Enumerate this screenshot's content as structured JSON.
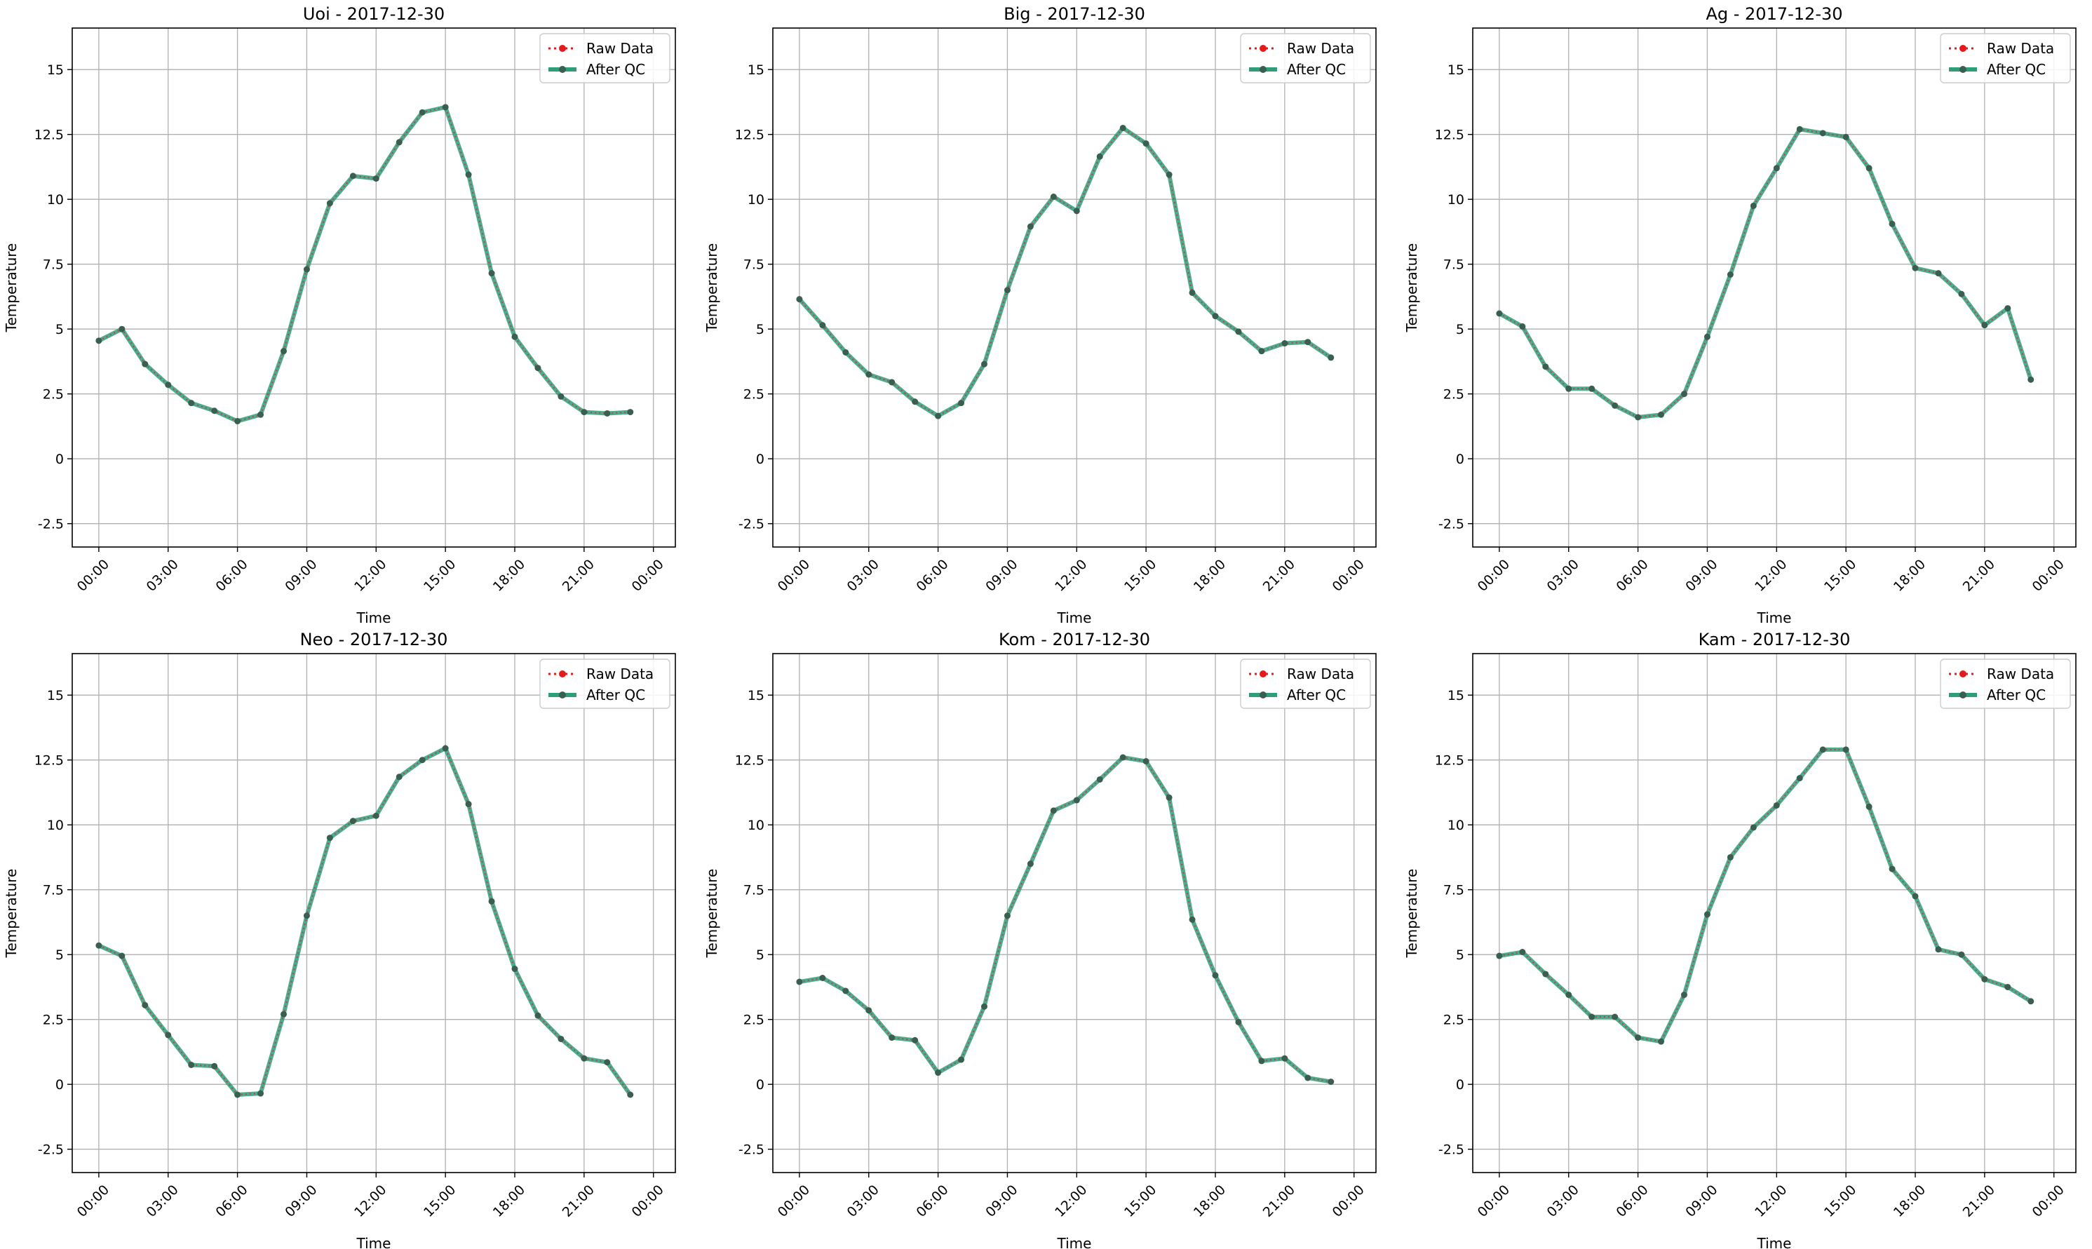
{
  "colors": {
    "raw": "#e41a1c",
    "qc": "#2e9e7a",
    "grid": "#b0b0b0",
    "axis": "#000000",
    "legend_border": "#cccccc"
  },
  "legend": {
    "raw_label": "Raw Data",
    "qc_label": "After QC"
  },
  "chart_data": [
    {
      "type": "line",
      "title": "Uoi - 2017-12-30",
      "xlabel": "Time",
      "ylabel": "Temperature",
      "ylim": [
        -3.4,
        16.6
      ],
      "yticks": [
        -2.5,
        0.0,
        2.5,
        5.0,
        7.5,
        10.0,
        12.5,
        15.0
      ],
      "xticks": [
        "00:00",
        "03:00",
        "06:00",
        "09:00",
        "12:00",
        "15:00",
        "18:00",
        "21:00",
        "00:00"
      ],
      "legend_position": "top-right",
      "grid": true,
      "x_hours": [
        0,
        1,
        2,
        3,
        4,
        5,
        6,
        7,
        8,
        9,
        10,
        11,
        12,
        13,
        14,
        15,
        16,
        17,
        18,
        19,
        20,
        21,
        22,
        23
      ],
      "series": [
        {
          "name": "Raw Data",
          "values": [
            4.55,
            5.0,
            3.65,
            2.85,
            2.15,
            1.85,
            1.45,
            1.7,
            4.15,
            7.3,
            9.85,
            10.9,
            10.8,
            12.2,
            13.35,
            13.55,
            10.95,
            7.15,
            4.7,
            3.5,
            2.4,
            1.8,
            1.75,
            1.8
          ]
        },
        {
          "name": "After QC",
          "values": [
            4.55,
            5.0,
            3.65,
            2.85,
            2.15,
            1.85,
            1.45,
            1.7,
            4.15,
            7.3,
            9.85,
            10.9,
            10.8,
            12.2,
            13.35,
            13.55,
            10.95,
            7.15,
            4.7,
            3.5,
            2.4,
            1.8,
            1.75,
            1.8
          ]
        }
      ]
    },
    {
      "type": "line",
      "title": "Big - 2017-12-30",
      "xlabel": "Time",
      "ylabel": "Temperature",
      "ylim": [
        -3.4,
        16.6
      ],
      "yticks": [
        -2.5,
        0.0,
        2.5,
        5.0,
        7.5,
        10.0,
        12.5,
        15.0
      ],
      "xticks": [
        "00:00",
        "03:00",
        "06:00",
        "09:00",
        "12:00",
        "15:00",
        "18:00",
        "21:00",
        "00:00"
      ],
      "legend_position": "top-right",
      "grid": true,
      "x_hours": [
        0,
        1,
        2,
        3,
        4,
        5,
        6,
        7,
        8,
        9,
        10,
        11,
        12,
        13,
        14,
        15,
        16,
        17,
        18,
        19,
        20,
        21,
        22,
        23
      ],
      "series": [
        {
          "name": "Raw Data",
          "values": [
            6.15,
            5.15,
            4.1,
            3.25,
            2.95,
            2.2,
            1.65,
            2.15,
            3.65,
            6.5,
            8.95,
            10.1,
            9.55,
            11.65,
            12.75,
            12.15,
            10.95,
            6.4,
            5.5,
            4.9,
            4.15,
            4.45,
            4.5,
            3.9
          ]
        },
        {
          "name": "After QC",
          "values": [
            6.15,
            5.15,
            4.1,
            3.25,
            2.95,
            2.2,
            1.65,
            2.15,
            3.65,
            6.5,
            8.95,
            10.1,
            9.55,
            11.65,
            12.75,
            12.15,
            10.95,
            6.4,
            5.5,
            4.9,
            4.15,
            4.45,
            4.5,
            3.9
          ]
        }
      ]
    },
    {
      "type": "line",
      "title": "Ag - 2017-12-30",
      "xlabel": "Time",
      "ylabel": "Temperature",
      "ylim": [
        -3.4,
        16.6
      ],
      "yticks": [
        -2.5,
        0.0,
        2.5,
        5.0,
        7.5,
        10.0,
        12.5,
        15.0
      ],
      "xticks": [
        "00:00",
        "03:00",
        "06:00",
        "09:00",
        "12:00",
        "15:00",
        "18:00",
        "21:00",
        "00:00"
      ],
      "legend_position": "top-right",
      "grid": true,
      "x_hours": [
        0,
        1,
        2,
        3,
        4,
        5,
        6,
        7,
        8,
        9,
        10,
        11,
        12,
        13,
        14,
        15,
        16,
        17,
        18,
        19,
        20,
        21,
        22,
        23
      ],
      "series": [
        {
          "name": "Raw Data",
          "values": [
            5.6,
            5.1,
            3.55,
            2.7,
            2.7,
            2.05,
            1.6,
            1.7,
            2.5,
            4.7,
            7.1,
            9.75,
            11.2,
            12.7,
            12.55,
            12.4,
            11.2,
            9.05,
            7.35,
            7.15,
            6.35,
            5.15,
            5.8,
            3.05
          ]
        },
        {
          "name": "After QC",
          "values": [
            5.6,
            5.1,
            3.55,
            2.7,
            2.7,
            2.05,
            1.6,
            1.7,
            2.5,
            4.7,
            7.1,
            9.75,
            11.2,
            12.7,
            12.55,
            12.4,
            11.2,
            9.05,
            7.35,
            7.15,
            6.35,
            5.15,
            5.8,
            3.05
          ]
        }
      ]
    },
    {
      "type": "line",
      "title": "Neo - 2017-12-30",
      "xlabel": "Time",
      "ylabel": "Temperature",
      "ylim": [
        -3.4,
        16.6
      ],
      "yticks": [
        -2.5,
        0.0,
        2.5,
        5.0,
        7.5,
        10.0,
        12.5,
        15.0
      ],
      "xticks": [
        "00:00",
        "03:00",
        "06:00",
        "09:00",
        "12:00",
        "15:00",
        "18:00",
        "21:00",
        "00:00"
      ],
      "legend_position": "top-right",
      "grid": true,
      "x_hours": [
        0,
        1,
        2,
        3,
        4,
        5,
        6,
        7,
        8,
        9,
        10,
        11,
        12,
        13,
        14,
        15,
        16,
        17,
        18,
        19,
        20,
        21,
        22,
        23
      ],
      "series": [
        {
          "name": "Raw Data",
          "values": [
            5.35,
            4.95,
            3.05,
            1.9,
            0.75,
            0.7,
            -0.4,
            -0.35,
            2.7,
            6.5,
            9.5,
            10.15,
            10.35,
            11.85,
            12.5,
            12.95,
            10.8,
            7.05,
            4.45,
            2.65,
            1.75,
            1.0,
            0.85,
            -0.4
          ]
        },
        {
          "name": "After QC",
          "values": [
            5.35,
            4.95,
            3.05,
            1.9,
            0.75,
            0.7,
            -0.4,
            -0.35,
            2.7,
            6.5,
            9.5,
            10.15,
            10.35,
            11.85,
            12.5,
            12.95,
            10.8,
            7.05,
            4.45,
            2.65,
            1.75,
            1.0,
            0.85,
            -0.4
          ]
        }
      ]
    },
    {
      "type": "line",
      "title": "Kom - 2017-12-30",
      "xlabel": "Time",
      "ylabel": "Temperature",
      "ylim": [
        -3.4,
        16.6
      ],
      "yticks": [
        -2.5,
        0.0,
        2.5,
        5.0,
        7.5,
        10.0,
        12.5,
        15.0
      ],
      "xticks": [
        "00:00",
        "03:00",
        "06:00",
        "09:00",
        "12:00",
        "15:00",
        "18:00",
        "21:00",
        "00:00"
      ],
      "legend_position": "top-right",
      "grid": true,
      "x_hours": [
        0,
        1,
        2,
        3,
        4,
        5,
        6,
        7,
        8,
        9,
        10,
        11,
        12,
        13,
        14,
        15,
        16,
        17,
        18,
        19,
        20,
        21,
        22,
        23
      ],
      "series": [
        {
          "name": "Raw Data",
          "values": [
            3.95,
            4.1,
            3.6,
            2.85,
            1.8,
            1.7,
            0.45,
            0.95,
            3.0,
            6.5,
            8.5,
            10.55,
            10.95,
            11.75,
            12.6,
            12.45,
            11.05,
            6.35,
            4.2,
            2.4,
            0.9,
            1.0,
            0.25,
            0.1
          ]
        },
        {
          "name": "After QC",
          "values": [
            3.95,
            4.1,
            3.6,
            2.85,
            1.8,
            1.7,
            0.45,
            0.95,
            3.0,
            6.5,
            8.5,
            10.55,
            10.95,
            11.75,
            12.6,
            12.45,
            11.05,
            6.35,
            4.2,
            2.4,
            0.9,
            1.0,
            0.25,
            0.1
          ]
        }
      ]
    },
    {
      "type": "line",
      "title": "Kam - 2017-12-30",
      "xlabel": "Time",
      "ylabel": "Temperature",
      "ylim": [
        -3.4,
        16.6
      ],
      "yticks": [
        -2.5,
        0.0,
        2.5,
        5.0,
        7.5,
        10.0,
        12.5,
        15.0
      ],
      "xticks": [
        "00:00",
        "03:00",
        "06:00",
        "09:00",
        "12:00",
        "15:00",
        "18:00",
        "21:00",
        "00:00"
      ],
      "legend_position": "top-right",
      "grid": true,
      "x_hours": [
        0,
        1,
        2,
        3,
        4,
        5,
        6,
        7,
        8,
        9,
        10,
        11,
        12,
        13,
        14,
        15,
        16,
        17,
        18,
        19,
        20,
        21,
        22,
        23
      ],
      "series": [
        {
          "name": "Raw Data",
          "values": [
            4.95,
            5.1,
            4.25,
            3.45,
            2.6,
            2.6,
            1.8,
            1.65,
            3.45,
            6.55,
            8.75,
            9.9,
            10.75,
            11.8,
            12.9,
            12.9,
            10.7,
            8.3,
            7.25,
            5.2,
            5.0,
            4.05,
            3.75,
            3.2
          ]
        },
        {
          "name": "After QC",
          "values": [
            4.95,
            5.1,
            4.25,
            3.45,
            2.6,
            2.6,
            1.8,
            1.65,
            3.45,
            6.55,
            8.75,
            9.9,
            10.75,
            11.8,
            12.9,
            12.9,
            10.7,
            8.3,
            7.25,
            5.2,
            5.0,
            4.05,
            3.75,
            3.2
          ]
        }
      ]
    }
  ]
}
